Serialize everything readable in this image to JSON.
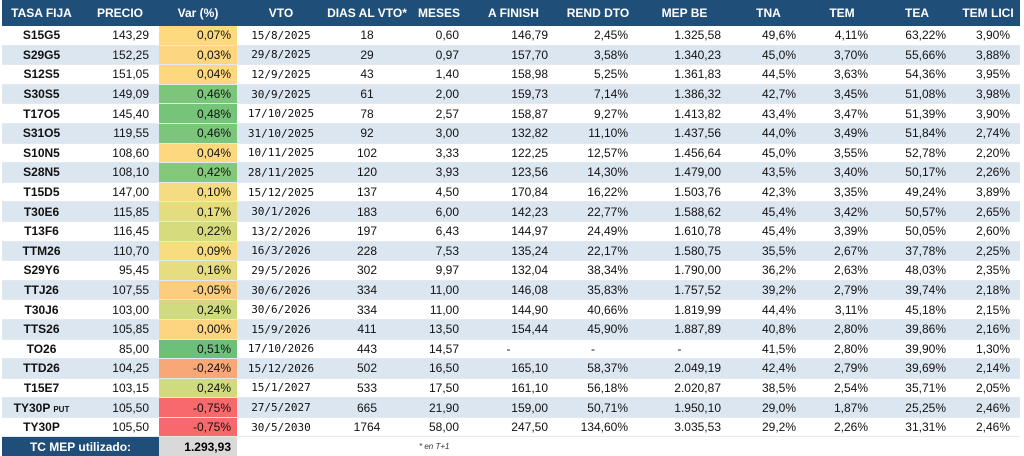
{
  "columns": [
    "TASA FIJA",
    "PRECIO",
    "Var (%)",
    "VTO",
    "DIAS AL VTO*",
    "MESES",
    "A FINISH",
    "REND DTO",
    "MEP BE",
    "TNA",
    "TEM",
    "TEA",
    "TEM LICI"
  ],
  "rows": [
    {
      "ticker": "S15G5",
      "tag": "",
      "precio": "143,29",
      "var": "0,07%",
      "var_color": "#fdd97f",
      "vto": "15/8/2025",
      "dias": "18",
      "meses": "0,60",
      "finish": "146,79",
      "rend": "2,45%",
      "mep": "1.325,58",
      "tna": "49,6%",
      "tem": "4,11%",
      "tea": "63,22%",
      "lici": "3,90%"
    },
    {
      "ticker": "S29G5",
      "tag": "",
      "precio": "152,25",
      "var": "0,03%",
      "var_color": "#fdd680",
      "vto": "29/8/2025",
      "dias": "29",
      "meses": "0,97",
      "finish": "157,70",
      "rend": "3,58%",
      "mep": "1.340,23",
      "tna": "45,0%",
      "tem": "3,70%",
      "tea": "55,66%",
      "lici": "3,88%"
    },
    {
      "ticker": "S12S5",
      "tag": "",
      "precio": "151,05",
      "var": "0,04%",
      "var_color": "#fdd87f",
      "vto": "12/9/2025",
      "dias": "43",
      "meses": "1,40",
      "finish": "158,98",
      "rend": "5,25%",
      "mep": "1.361,83",
      "tna": "44,5%",
      "tem": "3,63%",
      "tea": "54,36%",
      "lici": "3,95%"
    },
    {
      "ticker": "S30S5",
      "tag": "",
      "precio": "149,09",
      "var": "0,46%",
      "var_color": "#7bc67b",
      "vto": "30/9/2025",
      "dias": "61",
      "meses": "2,00",
      "finish": "159,73",
      "rend": "7,14%",
      "mep": "1.386,32",
      "tna": "42,7%",
      "tem": "3,45%",
      "tea": "51,08%",
      "lici": "3,98%"
    },
    {
      "ticker": "T17O5",
      "tag": "",
      "precio": "145,40",
      "var": "0,48%",
      "var_color": "#76c47a",
      "vto": "17/10/2025",
      "dias": "78",
      "meses": "2,57",
      "finish": "158,87",
      "rend": "9,27%",
      "mep": "1.413,82",
      "tna": "43,4%",
      "tem": "3,47%",
      "tea": "51,39%",
      "lici": "3,90%"
    },
    {
      "ticker": "S31O5",
      "tag": "",
      "precio": "119,55",
      "var": "0,46%",
      "var_color": "#7bc67b",
      "vto": "31/10/2025",
      "dias": "92",
      "meses": "3,00",
      "finish": "132,82",
      "rend": "11,10%",
      "mep": "1.437,56",
      "tna": "44,0%",
      "tem": "3,49%",
      "tea": "51,84%",
      "lici": "2,74%"
    },
    {
      "ticker": "S10N5",
      "tag": "",
      "precio": "108,60",
      "var": "0,04%",
      "var_color": "#fdd87f",
      "vto": "10/11/2025",
      "dias": "102",
      "meses": "3,33",
      "finish": "122,25",
      "rend": "12,57%",
      "mep": "1.456,64",
      "tna": "45,0%",
      "tem": "3,55%",
      "tea": "52,78%",
      "lici": "2,20%"
    },
    {
      "ticker": "S28N5",
      "tag": "",
      "precio": "108,10",
      "var": "0,42%",
      "var_color": "#84c979",
      "vto": "28/11/2025",
      "dias": "120",
      "meses": "3,93",
      "finish": "123,56",
      "rend": "14,30%",
      "mep": "1.479,00",
      "tna": "43,5%",
      "tem": "3,40%",
      "tea": "50,17%",
      "lici": "2,26%"
    },
    {
      "ticker": "T15D5",
      "tag": "",
      "precio": "147,00",
      "var": "0,10%",
      "var_color": "#f6dc80",
      "vto": "15/12/2025",
      "dias": "137",
      "meses": "4,50",
      "finish": "170,84",
      "rend": "16,22%",
      "mep": "1.503,76",
      "tna": "42,3%",
      "tem": "3,35%",
      "tea": "49,24%",
      "lici": "3,89%"
    },
    {
      "ticker": "T30E6",
      "tag": "",
      "precio": "115,85",
      "var": "0,17%",
      "var_color": "#e4dd80",
      "vto": "30/1/2026",
      "dias": "183",
      "meses": "6,00",
      "finish": "142,23",
      "rend": "22,77%",
      "mep": "1.588,62",
      "tna": "45,4%",
      "tem": "3,42%",
      "tea": "50,57%",
      "lici": "2,65%"
    },
    {
      "ticker": "T13F6",
      "tag": "",
      "precio": "116,45",
      "var": "0,22%",
      "var_color": "#d6db7e",
      "vto": "13/2/2026",
      "dias": "197",
      "meses": "6,43",
      "finish": "144,97",
      "rend": "24,49%",
      "mep": "1.610,78",
      "tna": "45,4%",
      "tem": "3,39%",
      "tea": "50,05%",
      "lici": "2,60%"
    },
    {
      "ticker": "TTM26",
      "tag": "",
      "precio": "110,70",
      "var": "0,09%",
      "var_color": "#f8dc80",
      "vto": "16/3/2026",
      "dias": "228",
      "meses": "7,53",
      "finish": "135,24",
      "rend": "22,17%",
      "mep": "1.580,75",
      "tna": "35,5%",
      "tem": "2,67%",
      "tea": "37,78%",
      "lici": "2,25%"
    },
    {
      "ticker": "S29Y6",
      "tag": "",
      "precio": "95,45",
      "var": "0,16%",
      "var_color": "#e6dd80",
      "vto": "29/5/2026",
      "dias": "302",
      "meses": "9,97",
      "finish": "132,04",
      "rend": "38,34%",
      "mep": "1.790,00",
      "tna": "36,2%",
      "tem": "2,63%",
      "tea": "48,03%",
      "lici": "2,35%"
    },
    {
      "ticker": "TTJ26",
      "tag": "",
      "precio": "107,55",
      "var": "-0,05%",
      "var_color": "#fccd7e",
      "vto": "30/6/2026",
      "dias": "334",
      "meses": "11,00",
      "finish": "146,08",
      "rend": "35,83%",
      "mep": "1.757,52",
      "tna": "39,2%",
      "tem": "2,79%",
      "tea": "39,74%",
      "lici": "2,18%"
    },
    {
      "ticker": "T30J6",
      "tag": "",
      "precio": "103,00",
      "var": "0,24%",
      "var_color": "#d0da7e",
      "vto": "30/6/2026",
      "dias": "334",
      "meses": "11,00",
      "finish": "144,90",
      "rend": "40,66%",
      "mep": "1.819,99",
      "tna": "44,4%",
      "tem": "3,11%",
      "tea": "45,18%",
      "lici": "2,15%"
    },
    {
      "ticker": "TTS26",
      "tag": "",
      "precio": "105,85",
      "var": "0,00%",
      "var_color": "#fdd47f",
      "vto": "15/9/2026",
      "dias": "411",
      "meses": "13,50",
      "finish": "154,44",
      "rend": "45,90%",
      "mep": "1.887,89",
      "tna": "40,8%",
      "tem": "2,80%",
      "tea": "39,86%",
      "lici": "2,16%"
    },
    {
      "ticker": "TO26",
      "tag": "",
      "precio": "85,00",
      "var": "0,51%",
      "var_color": "#6cc07a",
      "vto": "17/10/2026",
      "dias": "443",
      "meses": "14,57",
      "finish": "-",
      "rend": "-",
      "mep": "-",
      "tna": "41,5%",
      "tem": "2,80%",
      "tea": "39,90%",
      "lici": "1,30%"
    },
    {
      "ticker": "TTD26",
      "tag": "",
      "precio": "104,25",
      "var": "-0,24%",
      "var_color": "#f8a876",
      "vto": "15/12/2026",
      "dias": "502",
      "meses": "16,50",
      "finish": "165,10",
      "rend": "58,37%",
      "mep": "2.049,19",
      "tna": "42,4%",
      "tem": "2,79%",
      "tea": "39,69%",
      "lici": "2,14%"
    },
    {
      "ticker": "T15E7",
      "tag": "",
      "precio": "103,15",
      "var": "0,24%",
      "var_color": "#d0da7e",
      "vto": "15/1/2027",
      "dias": "533",
      "meses": "17,50",
      "finish": "161,10",
      "rend": "56,18%",
      "mep": "2.020,87",
      "tna": "38,5%",
      "tem": "2,54%",
      "tea": "35,71%",
      "lici": "2,05%"
    },
    {
      "ticker": "TY30P",
      "tag": "PUT",
      "precio": "105,50",
      "var": "-0,75%",
      "var_color": "#f8696b",
      "vto": "27/5/2027",
      "dias": "665",
      "meses": "21,90",
      "finish": "159,00",
      "rend": "50,71%",
      "mep": "1.950,10",
      "tna": "29,0%",
      "tem": "1,87%",
      "tea": "25,25%",
      "lici": "2,46%"
    },
    {
      "ticker": "TY30P",
      "tag": "",
      "precio": "105,50",
      "var": "-0,75%",
      "var_color": "#f8696b",
      "vto": "30/5/2030",
      "dias": "1764",
      "meses": "58,00",
      "finish": "247,50",
      "rend": "134,60%",
      "mep": "3.035,53",
      "tna": "29,2%",
      "tem": "2,26%",
      "tea": "31,31%",
      "lici": "2,46%"
    }
  ],
  "footer": {
    "mep_label": "TC MEP utilizado:",
    "mep_value": "1.293,93",
    "note": "* en T+1"
  },
  "colors": {
    "header_bg": "#1f4e79",
    "row_alt_bg": "#dce6f1",
    "footer_value_bg": "#d9d9d9"
  }
}
